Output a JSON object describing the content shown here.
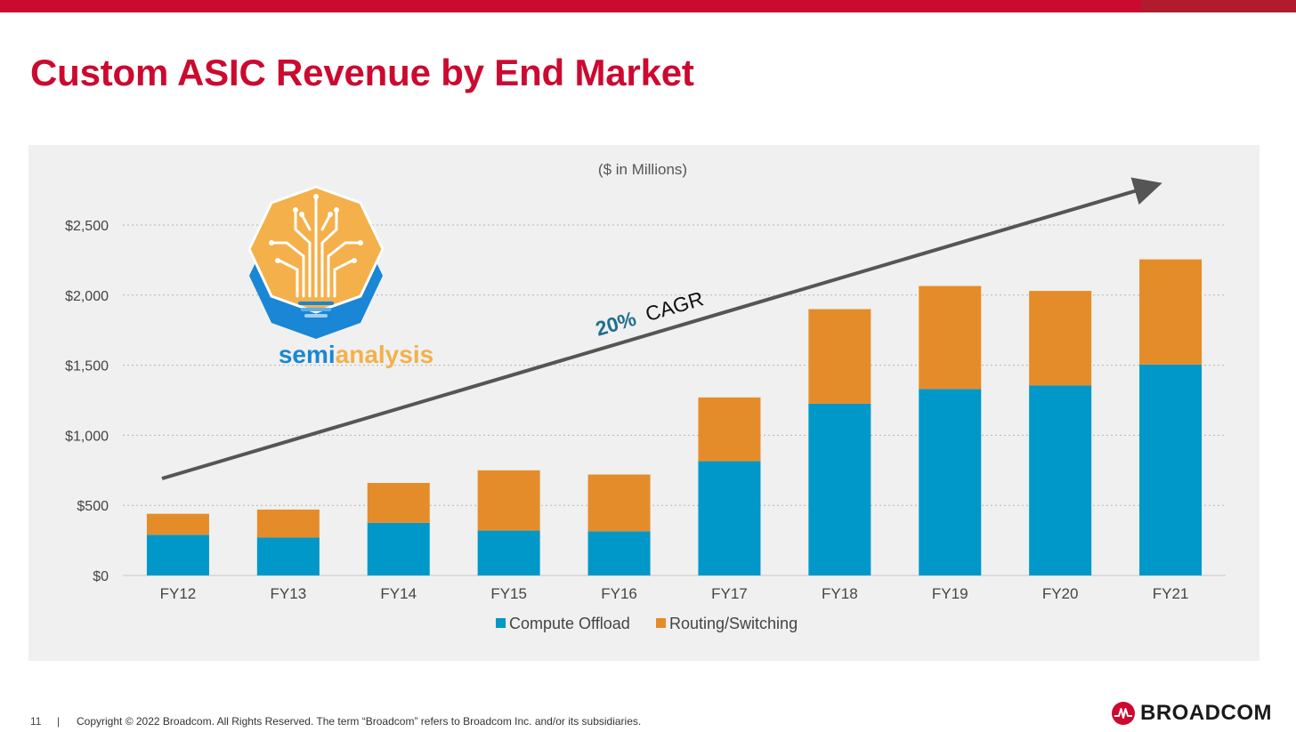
{
  "slide": {
    "title": "Custom ASIC Revenue by End Market",
    "page_number": "11",
    "separator": "|",
    "copyright": "Copyright © 2022 Broadcom.  All Rights Reserved. The term “Broadcom” refers to Broadcom Inc. and/or its subsidiaries.",
    "brand": "BROADCOM"
  },
  "watermark": {
    "brand_prefix": "semi",
    "brand_suffix": "analysis"
  },
  "annotation": {
    "cagr_value": "20%",
    "cagr_label": "CAGR"
  },
  "colors": {
    "brand_red": "#cc092f",
    "compute_offload": "#0097c9",
    "routing_switching": "#e58c2a",
    "trend_arrow": "#555555",
    "cagr_value": "#1f6f8f"
  },
  "chart_data": {
    "type": "bar",
    "stacked": true,
    "subtitle": "($ in Millions)",
    "categories": [
      "FY12",
      "FY13",
      "FY14",
      "FY15",
      "FY16",
      "FY17",
      "FY18",
      "FY19",
      "FY20",
      "FY21"
    ],
    "series": [
      {
        "name": "Compute Offload",
        "values": [
          290,
          270,
          375,
          320,
          315,
          815,
          1225,
          1330,
          1355,
          1505
        ]
      },
      {
        "name": "Routing/Switching",
        "values": [
          150,
          200,
          285,
          430,
          405,
          455,
          675,
          735,
          675,
          750
        ]
      }
    ],
    "yticks": [
      "$0",
      "$500",
      "$1,000",
      "$1,500",
      "$2,000",
      "$2,500"
    ],
    "ylim": [
      0,
      2500
    ],
    "grid": true,
    "legend_position": "bottom"
  }
}
